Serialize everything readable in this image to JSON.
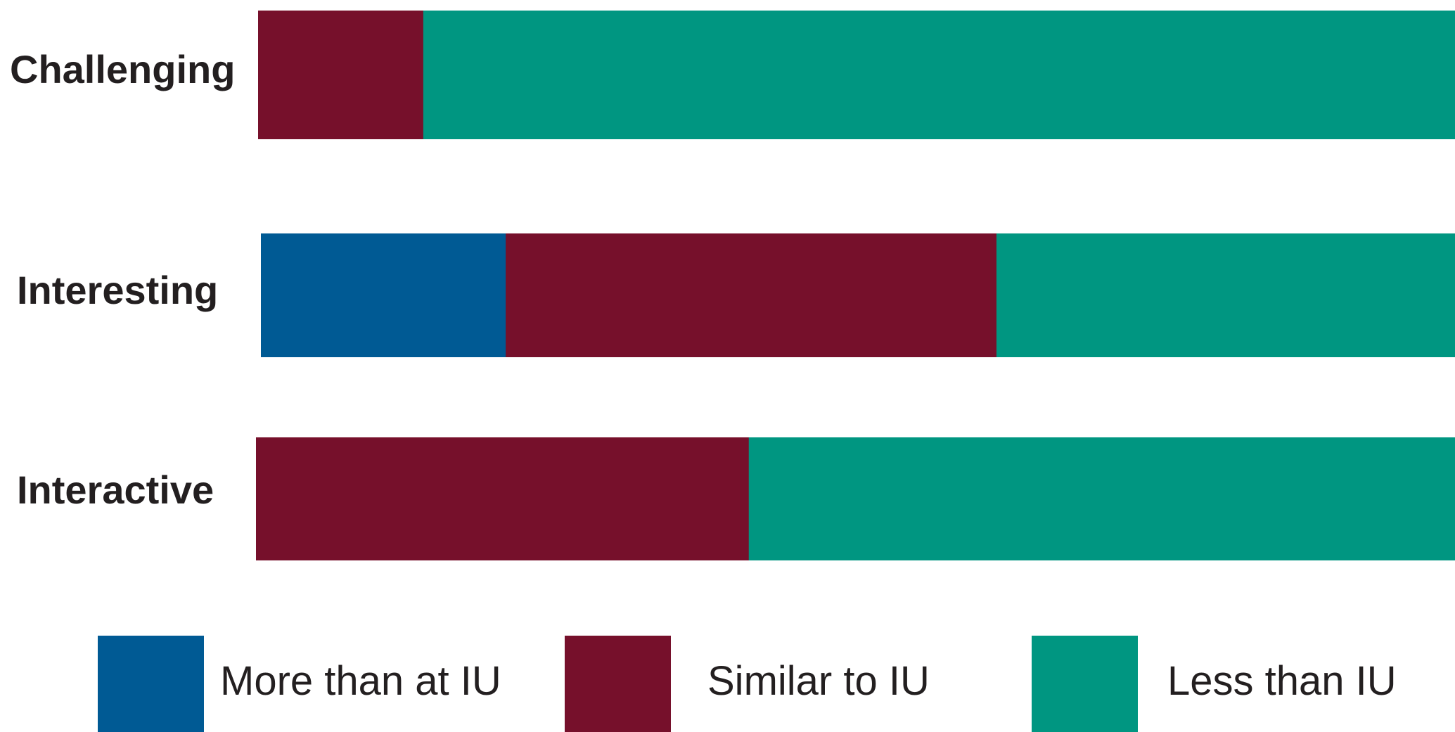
{
  "chart_data": {
    "type": "bar",
    "orientation": "horizontal",
    "stacked": true,
    "title": "",
    "xlabel": "",
    "ylabel": "",
    "xlim": [
      0,
      100
    ],
    "grid": false,
    "legend_position": "bottom",
    "categories": [
      "Challenging",
      "Interesting",
      "Interactive"
    ],
    "series": [
      {
        "name": "More than at IU",
        "color": "#005a94",
        "values": [
          0,
          20.5,
          0
        ]
      },
      {
        "name": "Similar to IU",
        "color": "#76102b",
        "values": [
          13.8,
          41.1,
          41.1
        ]
      },
      {
        "name": "Less than IU",
        "color": "#009681",
        "values": [
          86.2,
          38.4,
          58.9
        ]
      }
    ]
  }
}
